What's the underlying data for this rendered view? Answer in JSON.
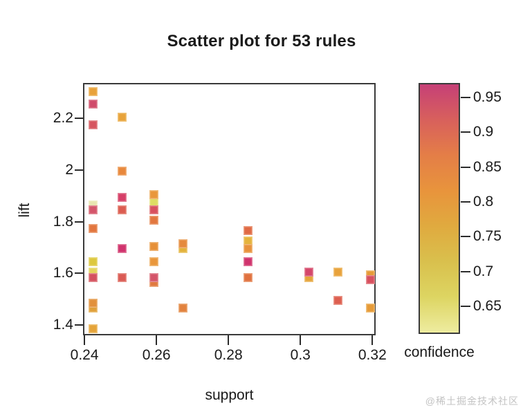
{
  "title": "Scatter plot for 53 rules",
  "xlabel": "support",
  "ylabel": "lift",
  "legend_label": "confidence",
  "watermark": "@稀土掘金技术社区",
  "chart_data": {
    "type": "scatter",
    "title": "Scatter plot for 53 rules",
    "xlabel": "support",
    "ylabel": "lift",
    "color_label": "confidence",
    "xlim": [
      0.2396,
      0.3209
    ],
    "ylim": [
      1.36,
      2.337
    ],
    "x_ticks": [
      0.24,
      0.26,
      0.28,
      0.3,
      0.32
    ],
    "y_ticks": [
      1.4,
      1.6,
      1.8,
      2,
      2.2
    ],
    "grid": false,
    "marker": "square",
    "colorbar": {
      "ticks": [
        0.95,
        0.9,
        0.85,
        0.8,
        0.75,
        0.7,
        0.65
      ],
      "lim": [
        0.61,
        0.971
      ],
      "gradient_top_to_bottom": [
        "#c64077",
        "#d8605c",
        "#e47e47",
        "#e8943c",
        "#e0aa3f",
        "#d9c04d",
        "#ddd562",
        "#eeeca0"
      ]
    },
    "points": [
      {
        "support": 0.242,
        "lift": 2.31,
        "color": "#e8a23b"
      },
      {
        "support": 0.242,
        "lift": 2.26,
        "color": "#d04a6a"
      },
      {
        "support": 0.242,
        "lift": 2.18,
        "color": "#d6555f"
      },
      {
        "support": 0.242,
        "lift": 1.87,
        "color": "#e8e5b0"
      },
      {
        "support": 0.242,
        "lift": 1.85,
        "color": "#d4556a"
      },
      {
        "support": 0.242,
        "lift": 1.78,
        "color": "#e2763f"
      },
      {
        "support": 0.242,
        "lift": 1.65,
        "color": "#ddc83f"
      },
      {
        "support": 0.242,
        "lift": 1.61,
        "color": "#e4d45e"
      },
      {
        "support": 0.242,
        "lift": 1.59,
        "color": "#d4505f"
      },
      {
        "support": 0.242,
        "lift": 1.47,
        "color": "#e0a03a"
      },
      {
        "support": 0.242,
        "lift": 1.49,
        "color": "#e2903c"
      },
      {
        "support": 0.242,
        "lift": 1.39,
        "color": "#e5a439"
      },
      {
        "support": 0.25,
        "lift": 2.21,
        "color": "#e8a33a"
      },
      {
        "support": 0.25,
        "lift": 2.0,
        "color": "#e8883c"
      },
      {
        "support": 0.25,
        "lift": 1.9,
        "color": "#d63e68"
      },
      {
        "support": 0.25,
        "lift": 1.85,
        "color": "#dc5c51"
      },
      {
        "support": 0.25,
        "lift": 1.7,
        "color": "#d0336e"
      },
      {
        "support": 0.25,
        "lift": 1.59,
        "color": "#da5a54"
      },
      {
        "support": 0.259,
        "lift": 1.88,
        "color": "#dedc64"
      },
      {
        "support": 0.259,
        "lift": 1.91,
        "color": "#e9973c"
      },
      {
        "support": 0.259,
        "lift": 1.85,
        "color": "#d8505f"
      },
      {
        "support": 0.259,
        "lift": 1.81,
        "color": "#e2773f"
      },
      {
        "support": 0.259,
        "lift": 1.71,
        "color": "#e69038"
      },
      {
        "support": 0.259,
        "lift": 1.65,
        "color": "#e9973c"
      },
      {
        "support": 0.259,
        "lift": 1.57,
        "color": "#e07a40"
      },
      {
        "support": 0.259,
        "lift": 1.59,
        "color": "#d4556a"
      },
      {
        "support": 0.267,
        "lift": 1.7,
        "color": "#e3b33c"
      },
      {
        "support": 0.267,
        "lift": 1.72,
        "color": "#e58a3e"
      },
      {
        "support": 0.267,
        "lift": 1.47,
        "color": "#e2823e"
      },
      {
        "support": 0.285,
        "lift": 1.77,
        "color": "#e06a45"
      },
      {
        "support": 0.285,
        "lift": 1.73,
        "color": "#e5b33c"
      },
      {
        "support": 0.285,
        "lift": 1.7,
        "color": "#e8923c"
      },
      {
        "support": 0.285,
        "lift": 1.65,
        "color": "#d0336e"
      },
      {
        "support": 0.285,
        "lift": 1.59,
        "color": "#e0713f"
      },
      {
        "support": 0.302,
        "lift": 1.59,
        "color": "#e5a43a"
      },
      {
        "support": 0.302,
        "lift": 1.61,
        "color": "#d4466b"
      },
      {
        "support": 0.31,
        "lift": 1.61,
        "color": "#e8a23b"
      },
      {
        "support": 0.31,
        "lift": 1.5,
        "color": "#dd5f50"
      },
      {
        "support": 0.319,
        "lift": 1.6,
        "color": "#e69b38"
      },
      {
        "support": 0.319,
        "lift": 1.58,
        "color": "#d8505f"
      },
      {
        "support": 0.319,
        "lift": 1.47,
        "color": "#e69b38"
      }
    ]
  }
}
